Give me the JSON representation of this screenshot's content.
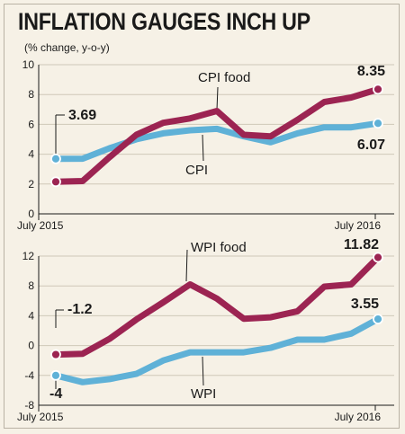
{
  "title": "INFLATION GAUGES INCH UP",
  "subtitle": "(% change, y-o-y)",
  "colors": {
    "food": "#9c2452",
    "general": "#5fb1d7",
    "background": "#f6f1e6"
  },
  "chart_data": [
    {
      "type": "line",
      "x": [
        "Jul 2015",
        "Aug 2015",
        "Sep 2015",
        "Oct 2015",
        "Nov 2015",
        "Dec 2015",
        "Jan 2016",
        "Feb 2016",
        "Mar 2016",
        "Apr 2016",
        "May 2016",
        "Jun 2016",
        "Jul 2016"
      ],
      "xtick_labels": [
        "July 2015",
        "July 2016"
      ],
      "ylim": [
        0,
        10
      ],
      "yticks": [
        0,
        2,
        4,
        6,
        8,
        10
      ],
      "series": [
        {
          "name": "CPI food",
          "color": "#9c2452",
          "values": [
            2.15,
            2.2,
            3.8,
            5.3,
            6.1,
            6.4,
            6.9,
            5.3,
            5.2,
            6.3,
            7.5,
            7.8,
            8.35
          ],
          "end_label": "8.35"
        },
        {
          "name": "CPI",
          "color": "#5fb1d7",
          "values": [
            3.69,
            3.7,
            4.4,
            5.0,
            5.4,
            5.6,
            5.7,
            5.2,
            4.8,
            5.4,
            5.8,
            5.8,
            6.07
          ],
          "start_label": "3.69",
          "end_label": "6.07"
        }
      ]
    },
    {
      "type": "line",
      "x": [
        "Jul 2015",
        "Aug 2015",
        "Sep 2015",
        "Oct 2015",
        "Nov 2015",
        "Dec 2015",
        "Jan 2016",
        "Feb 2016",
        "Mar 2016",
        "Apr 2016",
        "May 2016",
        "Jun 2016",
        "Jul 2016"
      ],
      "xtick_labels": [
        "July 2015",
        "July 2016"
      ],
      "ylim": [
        -8,
        12
      ],
      "yticks": [
        -8,
        -4,
        0,
        4,
        8,
        12
      ],
      "series": [
        {
          "name": "WPI food",
          "color": "#9c2452",
          "values": [
            -1.2,
            -1.1,
            0.9,
            3.5,
            5.8,
            8.2,
            6.3,
            3.6,
            3.8,
            4.6,
            7.9,
            8.2,
            11.82
          ],
          "start_label": "-1.2",
          "end_label": "11.82"
        },
        {
          "name": "WPI",
          "color": "#5fb1d7",
          "values": [
            -4,
            -4.9,
            -4.5,
            -3.8,
            -2.0,
            -0.9,
            -0.9,
            -0.9,
            -0.3,
            0.8,
            0.8,
            1.6,
            3.55
          ],
          "start_label": "-4",
          "end_label": "3.55"
        }
      ]
    }
  ]
}
